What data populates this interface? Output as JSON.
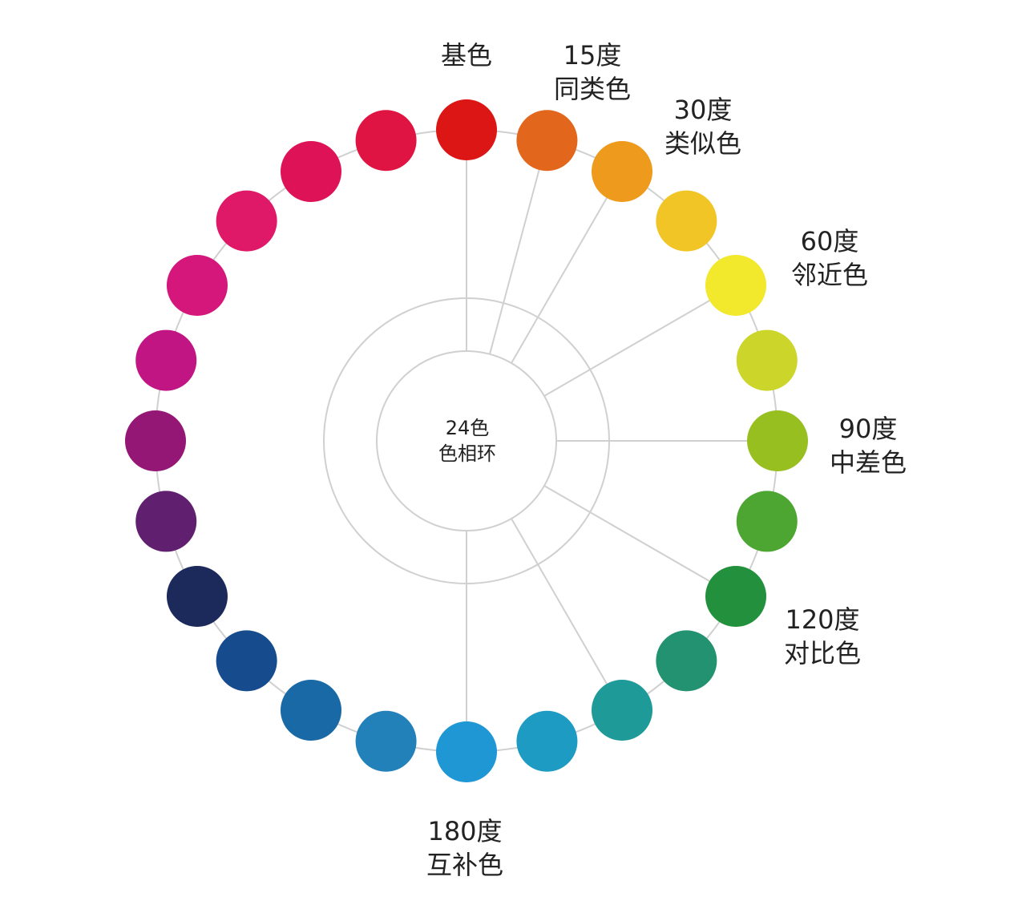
{
  "center": {
    "line1": "24色",
    "line2": "色相环"
  },
  "colors": [
    "#DC1515",
    "#E2661C",
    "#EE9A1D",
    "#F2C527",
    "#F2E82C",
    "#CCD52A",
    "#98BF20",
    "#4DA532",
    "#22903C",
    "#229270",
    "#1E9A98",
    "#1D9BC3",
    "#1E97D4",
    "#2381BA",
    "#1869A5",
    "#164C8D",
    "#1B2A5A",
    "#60206F",
    "#941675",
    "#C11584",
    "#D5177C",
    "#DF1967",
    "#DD1257",
    "#E01442"
  ],
  "lineColor": "#d0d0d0",
  "labels": [
    {
      "l1": "基色",
      "l2": ""
    },
    {
      "l1": "15度",
      "l2": "同类色"
    },
    {
      "l1": "30度",
      "l2": "类似色"
    },
    {
      "l1": "60度",
      "l2": "邻近色"
    },
    {
      "l1": "90度",
      "l2": "中差色"
    },
    {
      "l1": "120度",
      "l2": "对比色"
    },
    {
      "l1": "180度",
      "l2": "互补色"
    }
  ]
}
